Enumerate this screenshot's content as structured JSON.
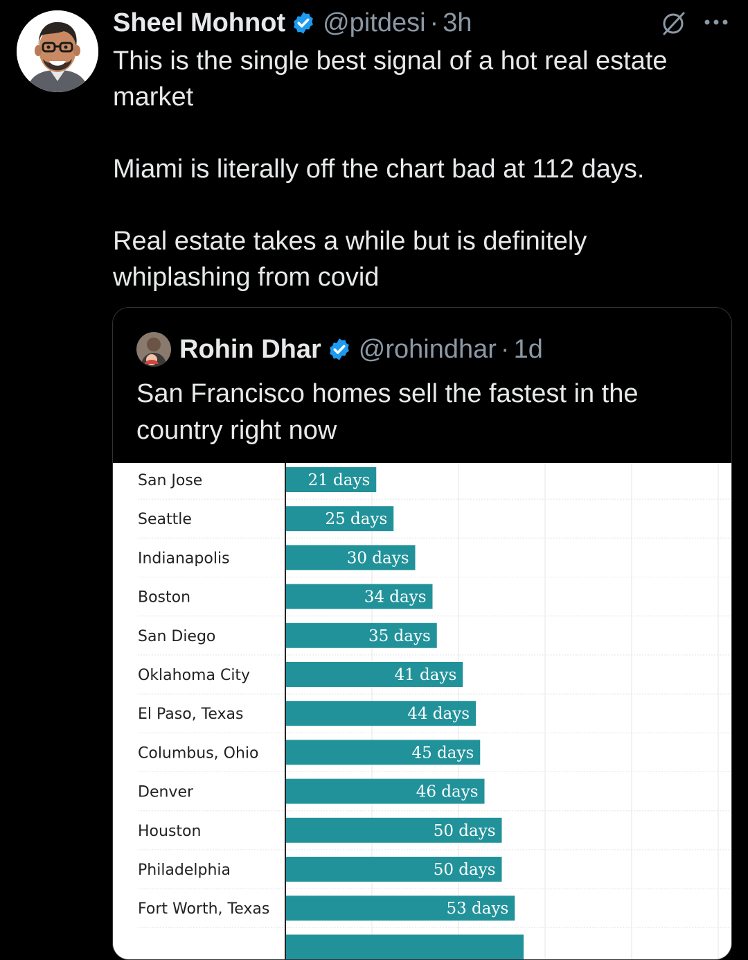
{
  "tweet": {
    "author_name": "Sheel Mohnot",
    "handle": "@pitdesi",
    "separator": "·",
    "time": "3h",
    "paragraphs": [
      "This is the single best signal of a hot real estate market",
      "Miami is literally off the chart bad at 112 days.",
      "Real estate takes a while but is definitely whiplashing from covid"
    ],
    "icons": {
      "verified": "verified-badge-icon",
      "grok": "grok-icon",
      "more": "more-options-icon"
    }
  },
  "quote": {
    "author_name": "Rohin Dhar",
    "handle": "@rohindhar",
    "separator": "·",
    "time": "1d",
    "text": "San Francisco homes sell the fastest in the country right now"
  },
  "colors": {
    "background": "#000000",
    "text_primary": "#e7e9ea",
    "text_secondary": "#8b98a5",
    "verified_blue": "#1d9bf0",
    "bar_teal": "#22929a",
    "chart_background": "#ffffff"
  },
  "chart_data": {
    "type": "bar",
    "orientation": "horizontal",
    "categories": [
      "San Jose",
      "Seattle",
      "Indianapolis",
      "Boston",
      "San Diego",
      "Oklahoma City",
      "El Paso, Texas",
      "Columbus, Ohio",
      "Denver",
      "Houston",
      "Philadelphia",
      "Fort Worth, Texas"
    ],
    "values": [
      21,
      25,
      30,
      34,
      35,
      41,
      44,
      45,
      46,
      50,
      50,
      53
    ],
    "value_labels": [
      "21 days",
      "25 days",
      "30 days",
      "34 days",
      "35 days",
      "41 days",
      "44 days",
      "45 days",
      "46 days",
      "50 days",
      "50 days",
      "53 days"
    ],
    "unit": "days",
    "xlim": [
      0,
      100
    ],
    "x_gridline_step": 20,
    "grid": true,
    "bar_color": "#22929a",
    "title": "",
    "xlabel": "",
    "ylabel": ""
  }
}
